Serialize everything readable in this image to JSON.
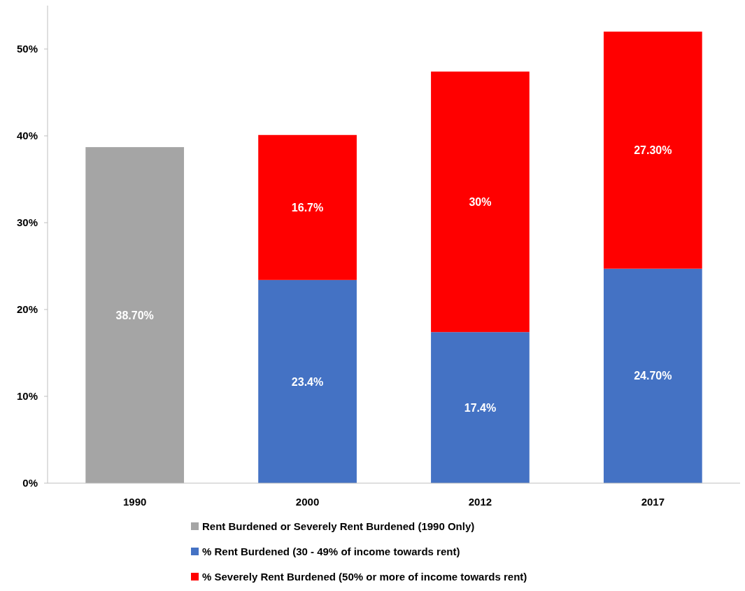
{
  "chart_data": {
    "type": "bar",
    "stacked": true,
    "categories": [
      "1990",
      "2000",
      "2012",
      "2017"
    ],
    "series": [
      {
        "name": "Rent Burdened or Severely Rent Burdened (1990 Only)",
        "color": "#a5a5a5",
        "values": [
          38.7,
          null,
          null,
          null
        ],
        "value_labels": [
          "38.70%",
          null,
          null,
          null
        ]
      },
      {
        "name": "% Rent Burdened (30 - 49% of income towards rent)",
        "color": "#4472c4",
        "values": [
          null,
          23.4,
          17.4,
          24.7
        ],
        "value_labels": [
          null,
          "23.4%",
          "17.4%",
          "24.70%"
        ]
      },
      {
        "name": "% Severely Rent Burdened (50% or more of income towards rent)",
        "color": "#ff0000",
        "values": [
          null,
          16.7,
          30,
          27.3
        ],
        "value_labels": [
          null,
          "16.7%",
          "30%",
          "27.30%"
        ]
      }
    ],
    "ylim": [
      0,
      55
    ],
    "yticks": [
      {
        "value": 0,
        "label": "0%"
      },
      {
        "value": 10,
        "label": "10%"
      },
      {
        "value": 20,
        "label": "20%"
      },
      {
        "value": 30,
        "label": "30%"
      },
      {
        "value": 40,
        "label": "40%"
      },
      {
        "value": 50,
        "label": "50%"
      }
    ],
    "grid": false,
    "legend": "bottom"
  }
}
